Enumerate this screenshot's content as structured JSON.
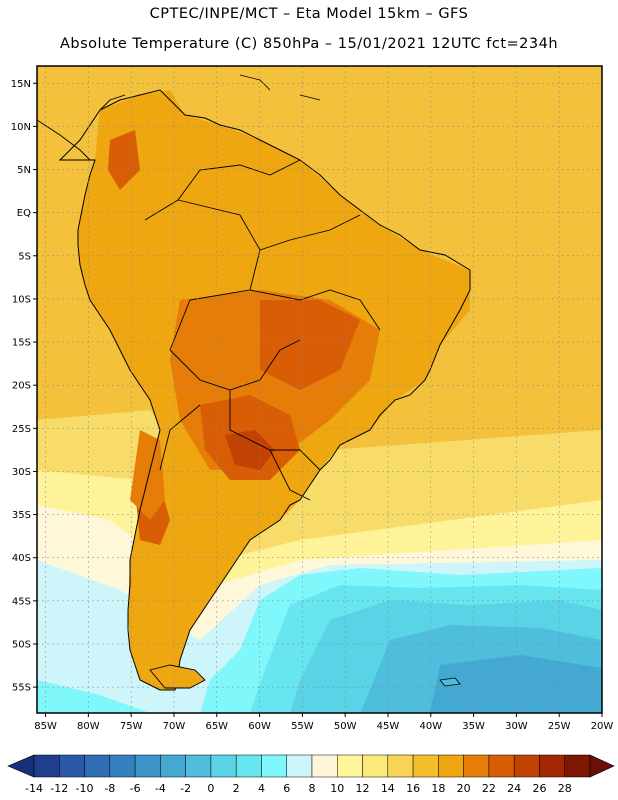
{
  "header": {
    "line1": "CPTEC/INPE/MCT –  Eta Model 15km – GFS",
    "line2": "Absolute Temperature (C) 850hPa – 15/01/2021 12UTC fct=234h"
  },
  "map": {
    "lon_range": [
      -86,
      -20
    ],
    "lat_range": [
      -58,
      17
    ],
    "lat_ticks": [
      "15N",
      "10N",
      "5N",
      "EQ",
      "5S",
      "10S",
      "15S",
      "20S",
      "25S",
      "30S",
      "35S",
      "40S",
      "45S",
      "50S",
      "55S"
    ],
    "lon_ticks": [
      "85W",
      "80W",
      "75W",
      "70W",
      "65W",
      "60W",
      "55W",
      "50W",
      "45W",
      "40W",
      "35W",
      "30W",
      "25W",
      "20W"
    ]
  },
  "colorbar": {
    "labels": [
      "-14",
      "-12",
      "-10",
      "-8",
      "-6",
      "-4",
      "-2",
      "0",
      "2",
      "4",
      "6",
      "8",
      "10",
      "12",
      "14",
      "16",
      "18",
      "20",
      "22",
      "24",
      "26",
      "28"
    ],
    "colors": [
      "#1f3f8c",
      "#2a5aa7",
      "#2f6db5",
      "#3580c0",
      "#3c94c9",
      "#45a8d3",
      "#4fbddc",
      "#5ad3e6",
      "#67e6f0",
      "#80f8fb",
      "#cdf5fa",
      "#fff6d9",
      "#fff59a",
      "#fde87a",
      "#f7d356",
      "#f2be2c",
      "#eea710",
      "#e57d08",
      "#d85d04",
      "#c14202",
      "#a22802",
      "#7d1702"
    ],
    "under_color": "#1a2f7a",
    "over_color": "#6a0f0a"
  }
}
